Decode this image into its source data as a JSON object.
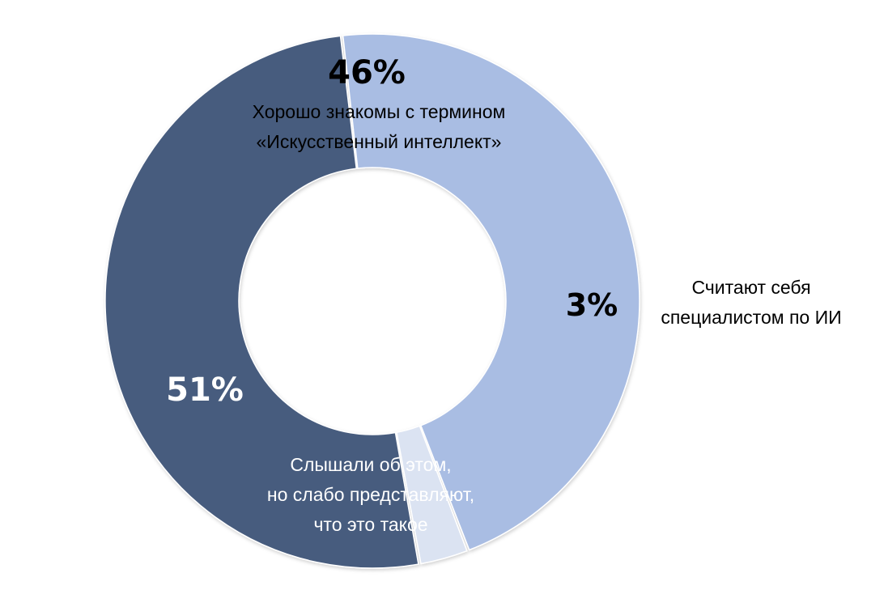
{
  "chart_data": {
    "type": "pie",
    "variant": "donut",
    "title": "",
    "slices": [
      {
        "value": 46,
        "value_label": "46%",
        "label_lines": [
          "Хорошо знакомы с термином",
          "«Искусственный интеллект»"
        ],
        "color": "#a9bde3",
        "text_color": "#000000"
      },
      {
        "value": 3,
        "value_label": "3%",
        "label_lines": [
          "Считают себя",
          "специалистом по ИИ"
        ],
        "color": "#dbe3f2",
        "text_color": "#000000"
      },
      {
        "value": 51,
        "value_label": "51%",
        "label_lines": [
          "Слышали об этом,",
          "но слабо представляют,",
          "что это такое"
        ],
        "color": "#475b7e",
        "text_color": "#ffffff"
      }
    ]
  }
}
